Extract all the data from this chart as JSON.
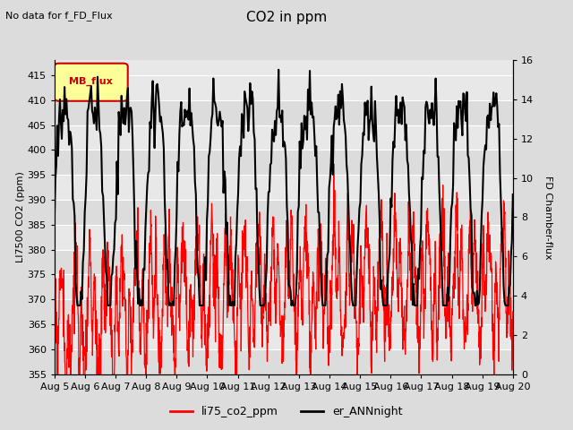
{
  "title": "CO2 in ppm",
  "top_left_text": "No data for f_FD_Flux",
  "legend_box_label": "MB_flux",
  "ylabel_left": "LI7500 CO2 (ppm)",
  "ylabel_right": "FD Chamber-flux",
  "ylim_left": [
    355,
    418
  ],
  "ylim_right": [
    0,
    16
  ],
  "yticks_left": [
    355,
    360,
    365,
    370,
    375,
    380,
    385,
    390,
    395,
    400,
    405,
    410,
    415
  ],
  "yticks_right": [
    0,
    2,
    4,
    6,
    8,
    10,
    12,
    14,
    16
  ],
  "xlim": [
    0,
    15
  ],
  "xtick_labels": [
    "Aug 5",
    "Aug 6",
    "Aug 7",
    "Aug 8",
    "Aug 9",
    "Aug 10",
    "Aug 11",
    "Aug 12",
    "Aug 13",
    "Aug 14",
    "Aug 15",
    "Aug 16",
    "Aug 17",
    "Aug 18",
    "Aug 19",
    "Aug 20"
  ],
  "line1_color": "#FF0000",
  "line2_color": "#000000",
  "line1_label": "li75_co2_ppm",
  "line2_label": "er_ANNnight",
  "background_color": "#DCDCDC",
  "plot_bg_color": "#E8E8E8",
  "band_color_light": "#EBEBEB",
  "band_color_dark": "#D8D8D8",
  "legend_box_color": "#FFFF99",
  "legend_box_border": "#CC0000"
}
